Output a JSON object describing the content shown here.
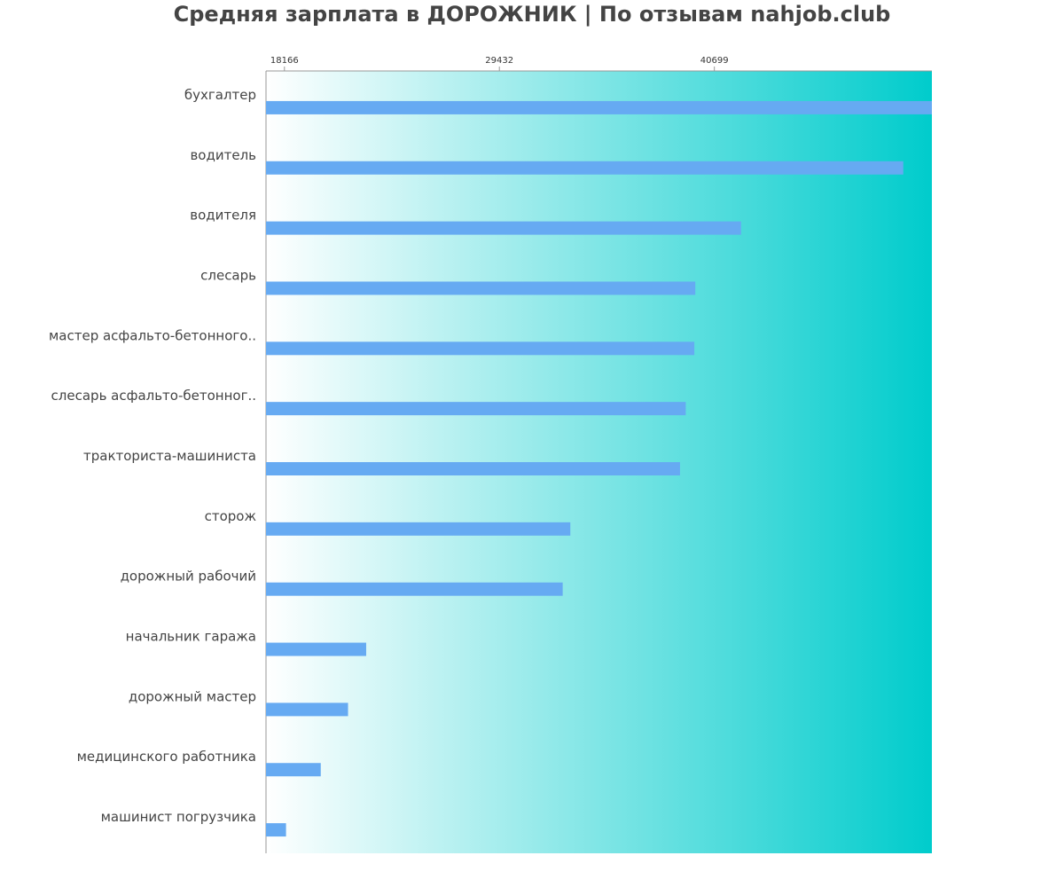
{
  "chart_data": {
    "type": "bar",
    "orientation": "horizontal",
    "title": "Средняя зарплата в ДОРОЖНИК | По отзывам nahjob.club",
    "xlabel": "",
    "ylabel": "",
    "x_ticks": [
      18166,
      29432,
      40699
    ],
    "xlim": [
      17200,
      52100
    ],
    "categories": [
      "бухгалтер",
      "водитель",
      "водителя",
      "слесарь",
      "мастер асфальто-бетонного..",
      "слесарь асфальто-бетонног..",
      "тракториста-машиниста",
      "сторож",
      "дорожный рабочий",
      "начальник гаража",
      "дорожный мастер",
      "медицинского работника",
      "машинист погрузчика"
    ],
    "values": [
      52100,
      50600,
      42100,
      39700,
      39650,
      39200,
      38900,
      33150,
      32750,
      22450,
      21500,
      20070,
      18250
    ],
    "bar_color": "#66aaf2",
    "background_gradient": [
      "#ffffff",
      "#00cccc"
    ],
    "axis_color": "#999999",
    "grid": false
  }
}
